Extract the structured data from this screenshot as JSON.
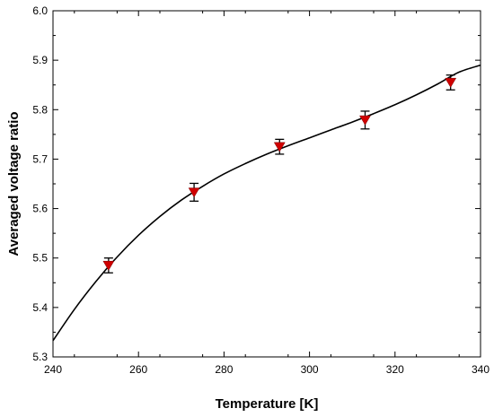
{
  "chart_data": {
    "type": "scatter",
    "title": "",
    "xlabel": "Temperature [K]",
    "ylabel": "Averaged voltage ratio",
    "xlim": [
      240,
      340
    ],
    "ylim": [
      5.3,
      6.0
    ],
    "xticks": [
      240,
      260,
      280,
      300,
      320,
      340
    ],
    "yticks": [
      5.3,
      5.4,
      5.5,
      5.6,
      5.7,
      5.8,
      5.9,
      6.0
    ],
    "xtick_labels": [
      "240",
      "260",
      "280",
      "300",
      "320",
      "340"
    ],
    "ytick_labels": [
      "5.3",
      "5.4",
      "5.5",
      "5.6",
      "5.7",
      "5.8",
      "5.9",
      "6.0"
    ],
    "grid": false,
    "marker": "down-triangle",
    "marker_color": "#d00000",
    "line_color": "#000000",
    "series": [
      {
        "x": [
          253,
          273,
          293,
          313,
          333
        ],
        "y": [
          5.485,
          5.633,
          5.725,
          5.779,
          5.855
        ],
        "error": [
          0.015,
          0.018,
          0.015,
          0.018,
          0.015
        ]
      }
    ],
    "fit_curve": {
      "x": [
        240,
        245,
        250,
        255,
        260,
        265,
        270,
        275,
        280,
        285,
        290,
        295,
        300,
        305,
        310,
        315,
        320,
        325,
        330,
        335,
        340
      ],
      "y": [
        5.333,
        5.396,
        5.452,
        5.502,
        5.546,
        5.584,
        5.617,
        5.645,
        5.67,
        5.691,
        5.71,
        5.727,
        5.743,
        5.759,
        5.775,
        5.792,
        5.81,
        5.83,
        5.852,
        5.876,
        5.89
      ]
    }
  }
}
